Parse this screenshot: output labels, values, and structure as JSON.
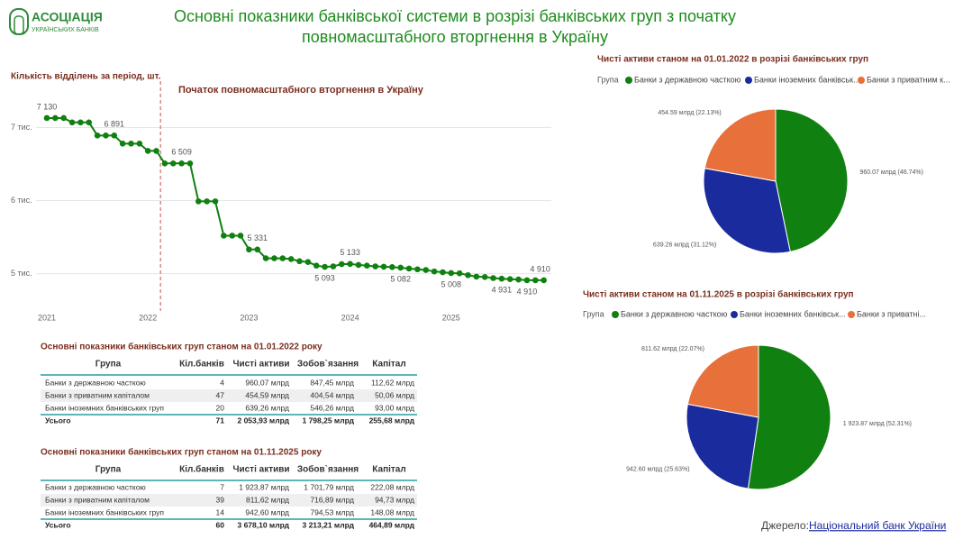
{
  "header": {
    "logo_title": "АСОЦІАЦІЯ",
    "logo_subtitle": "УКРАЇНСЬКИХ БАНКІВ",
    "title_lines": [
      "Основні показники банківської системи в розрізі банківських груп з початку",
      "повномасштабного вторгнення в Україну"
    ]
  },
  "chart_data": [
    {
      "type": "line",
      "title": "Кількість відділень за період, шт.",
      "annotation": "Початок повномасштабного вторгнення в Україну",
      "color": "#108010",
      "grid": true,
      "categories": [
        "2021",
        null,
        null,
        null,
        null,
        null,
        null,
        null,
        null,
        null,
        null,
        null,
        "2022",
        null,
        null,
        null,
        null,
        null,
        null,
        null,
        null,
        null,
        null,
        null,
        "2023",
        null,
        null,
        null,
        null,
        null,
        null,
        null,
        null,
        null,
        null,
        null,
        "2024",
        null,
        null,
        null,
        null,
        null,
        null,
        null,
        null,
        null,
        null,
        null,
        "2025",
        null,
        null,
        null,
        null,
        null,
        null,
        null,
        null,
        null,
        null,
        null
      ],
      "values": [
        7130,
        7130,
        7130,
        7070,
        7070,
        7070,
        6891,
        6891,
        6891,
        6780,
        6780,
        6780,
        6680,
        6680,
        6509,
        6509,
        6509,
        6509,
        5990,
        5990,
        5990,
        5520,
        5520,
        5520,
        5331,
        5331,
        5210,
        5210,
        5210,
        5200,
        5170,
        5160,
        5110,
        5093,
        5100,
        5130,
        5133,
        5120,
        5110,
        5100,
        5095,
        5090,
        5082,
        5070,
        5060,
        5050,
        5030,
        5020,
        5008,
        5005,
        4980,
        4960,
        4955,
        4940,
        4931,
        4925,
        4920,
        4910,
        4910,
        4910
      ],
      "value_labels": [
        "7 130",
        null,
        null,
        null,
        null,
        null,
        null,
        null,
        "6 891",
        null,
        null,
        null,
        null,
        null,
        null,
        null,
        "6 509",
        null,
        null,
        null,
        null,
        null,
        null,
        null,
        null,
        "5 331",
        null,
        null,
        null,
        null,
        null,
        null,
        null,
        "5 093",
        null,
        null,
        "5 133",
        null,
        null,
        null,
        null,
        null,
        "5 082",
        null,
        null,
        null,
        null,
        null,
        "5 008",
        null,
        null,
        null,
        null,
        null,
        "4 931",
        null,
        null,
        "4 910",
        null,
        "4 910"
      ],
      "ylim": [
        4650,
        7450
      ],
      "yticks": [
        {
          "value": 5000,
          "label": "5 тис."
        },
        {
          "value": 6000,
          "label": "6 тис."
        },
        {
          "value": 7000,
          "label": "7 тис."
        }
      ]
    },
    {
      "type": "pie",
      "title": "Чисті активи станом на 01.01.2022 в розрізі банківських груп",
      "legend_title": "Група",
      "categories": [
        "Банки з державною часткою",
        "Банки іноземних банківськ...",
        "Банки з приватним к..."
      ],
      "values": [
        960.07,
        639.26,
        454.59
      ],
      "value_labels": [
        "960.07 млрд (46.74%)",
        "639.26 млрд (31.12%)",
        "454.59 млрд (22.13%)"
      ],
      "colors": [
        "#108010",
        "#1a2b9e",
        "#e8703a"
      ]
    },
    {
      "type": "pie",
      "title": "Чисті активи станом на 01.11.2025 в розрізі банківських груп",
      "legend_title": "Група",
      "categories": [
        "Банки з державною часткою",
        "Банки іноземних банківськ...",
        "Банки з приватні..."
      ],
      "values": [
        1923.87,
        942.6,
        811.62
      ],
      "value_labels": [
        "1 923.87 млрд (52.31%)",
        "942.60 млрд (25.63%)",
        "811.62 млрд (22.07%)"
      ],
      "colors": [
        "#108010",
        "#1a2b9e",
        "#e8703a"
      ]
    }
  ],
  "tables": [
    {
      "title": "Основні показники банківських груп станом на 01.01.2022 року",
      "header": [
        "Група",
        "Кіл.банків",
        "Чисті активи",
        "Зобов`язання",
        "Капітал"
      ],
      "rows": [
        [
          "Банки з державною часткою",
          "4",
          "960,07 млрд",
          "847,45 млрд",
          "112,62 млрд"
        ],
        [
          "Банки з приватним капіталом",
          "47",
          "454,59 млрд",
          "404,54 млрд",
          "50,06 млрд"
        ],
        [
          "Банки іноземних банківських груп",
          "20",
          "639,26 млрд",
          "546,26 млрд",
          "93,00 млрд"
        ]
      ],
      "total": [
        "Усього",
        "71",
        "2 053,93 млрд",
        "1 798,25 млрд",
        "255,68 млрд"
      ]
    },
    {
      "title": "Основні показники банківських груп станом на 01.11.2025 року",
      "header": [
        "Група",
        "Кіл.банків",
        "Чисті активи",
        "Зобов`язання",
        "Капітал"
      ],
      "rows": [
        [
          "Банки з державною часткою",
          "7",
          "1 923,87 млрд",
          "1 701,79 млрд",
          "222,08 млрд"
        ],
        [
          "Банки з приватним капіталом",
          "39",
          "811,62 млрд",
          "716,89 млрд",
          "94,73 млрд"
        ],
        [
          "Банки іноземних банківських груп",
          "14",
          "942,60 млрд",
          "794,53 млрд",
          "148,08 млрд"
        ]
      ],
      "total": [
        "Усього",
        "60",
        "3 678,10 млрд",
        "3 213,21 млрд",
        "464,89 млрд"
      ]
    }
  ],
  "source": {
    "label": "Джерело:",
    "link": "Національний банк України"
  }
}
